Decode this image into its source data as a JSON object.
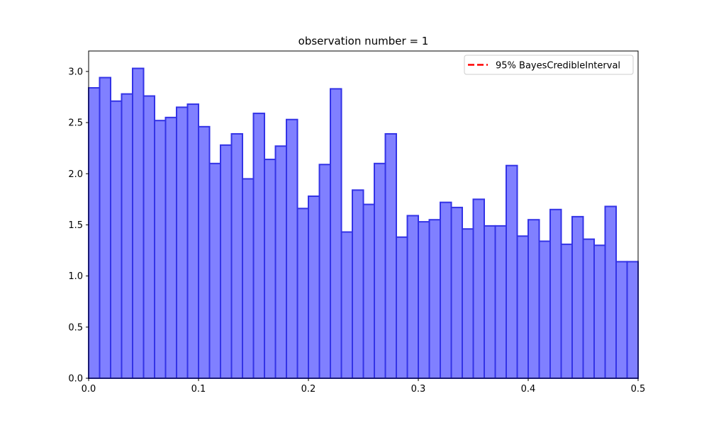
{
  "chart_data": {
    "type": "bar",
    "title": "observation number = 1",
    "xlabel": "",
    "ylabel": "",
    "xlim": [
      0,
      0.5
    ],
    "ylim": [
      0,
      3.2
    ],
    "bin_width": 0.01,
    "bin_starts": [
      0.0,
      0.01,
      0.02,
      0.03,
      0.04,
      0.05,
      0.06,
      0.07,
      0.08,
      0.09,
      0.1,
      0.11,
      0.12,
      0.13,
      0.14,
      0.15,
      0.16,
      0.17,
      0.18,
      0.19,
      0.2,
      0.21,
      0.22,
      0.23,
      0.24,
      0.25,
      0.26,
      0.27,
      0.28,
      0.29,
      0.3,
      0.31,
      0.32,
      0.33,
      0.34,
      0.35,
      0.36,
      0.37,
      0.38,
      0.39,
      0.4,
      0.41,
      0.42,
      0.43,
      0.44,
      0.45,
      0.46,
      0.47,
      0.48,
      0.49
    ],
    "values": [
      2.84,
      2.94,
      2.71,
      2.78,
      3.03,
      2.76,
      2.52,
      2.55,
      2.65,
      2.68,
      2.46,
      2.1,
      2.28,
      2.39,
      1.95,
      2.59,
      2.14,
      2.27,
      2.53,
      1.66,
      1.78,
      2.09,
      2.83,
      1.43,
      1.84,
      1.7,
      2.1,
      2.39,
      1.38,
      1.59,
      1.53,
      1.55,
      1.72,
      1.67,
      1.46,
      1.75,
      1.49,
      1.49,
      2.08,
      1.39,
      1.55,
      1.34,
      1.65,
      1.31,
      1.58,
      1.36,
      1.3,
      1.68,
      1.14,
      1.14
    ],
    "x_ticks": [
      0.0,
      0.1,
      0.2,
      0.3,
      0.4,
      0.5
    ],
    "x_tick_labels": [
      "0.0",
      "0.1",
      "0.2",
      "0.3",
      "0.4",
      "0.5"
    ],
    "y_ticks": [
      0.0,
      0.5,
      1.0,
      1.5,
      2.0,
      2.5,
      3.0
    ],
    "y_tick_labels": [
      "0.0",
      "0.5",
      "1.0",
      "1.5",
      "2.0",
      "2.5",
      "3.0"
    ],
    "bar_fill": "#8080ff",
    "bar_edge": "#3333e6",
    "legend": {
      "placement": "top-right",
      "entries": [
        {
          "label": "95% BayesCredibleInterval",
          "color": "#ff0000",
          "style": "dashed"
        }
      ]
    },
    "grid": false
  }
}
